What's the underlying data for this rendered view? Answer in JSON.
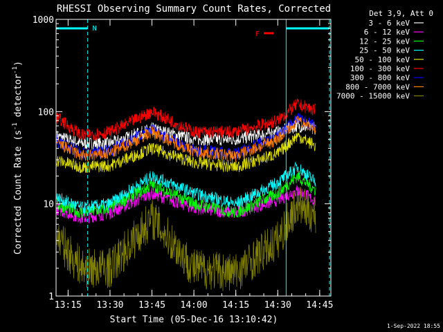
{
  "chart_data": {
    "type": "line",
    "title": "RHESSI Observing Summary Count Rates, Corrected",
    "xlabel": "Start Time (05-Dec-16 13:10:42)",
    "ylabel": "Corrected Count Rate (s⁻¹ detector⁻¹)",
    "ylabel_main": "Corrected Count Rate (s",
    "ylabel_sup1": "-1",
    "ylabel_mid": " detector",
    "ylabel_sup2": "-1",
    "ylabel_end": ")",
    "y_scale": "log",
    "ylim": [
      1,
      1000
    ],
    "xlim": [
      "13:10:42",
      "14:49:00"
    ],
    "x_ticks": [
      "13:15",
      "13:30",
      "13:45",
      "14:00",
      "14:15",
      "14:30",
      "14:45"
    ],
    "y_ticks": [
      "1",
      "10",
      "100",
      "1000"
    ],
    "legend_header": "Det 3,9, Att 0",
    "legend_placement": "right",
    "footer": "1-Sep-2022 18:55",
    "series": [
      {
        "name": "3 - 6 keV",
        "color": "#ffffff",
        "times": [
          "13:10",
          "13:20",
          "13:30",
          "13:45",
          "14:00",
          "14:15",
          "14:30",
          "14:37",
          "14:45"
        ],
        "values": [
          55,
          45,
          45,
          65,
          50,
          50,
          60,
          70,
          65
        ]
      },
      {
        "name": "6 - 12 keV",
        "color": "#ff00ff",
        "times": [
          "13:10",
          "13:20",
          "13:30",
          "13:45",
          "14:00",
          "14:15",
          "14:30",
          "14:37",
          "14:45"
        ],
        "values": [
          9,
          7,
          8,
          13,
          9,
          8,
          11,
          14,
          10
        ]
      },
      {
        "name": "12 - 25 keV",
        "color": "#00ff00",
        "times": [
          "13:10",
          "13:20",
          "13:30",
          "13:45",
          "14:00",
          "14:15",
          "14:30",
          "14:37",
          "14:45"
        ],
        "values": [
          10,
          8,
          9,
          16,
          10,
          8,
          13,
          20,
          13
        ]
      },
      {
        "name": "25 - 50 keV",
        "color": "#00ffff",
        "times": [
          "13:10",
          "13:20",
          "13:30",
          "13:45",
          "14:00",
          "14:15",
          "14:30",
          "14:37",
          "14:45"
        ],
        "values": [
          12,
          9,
          10,
          20,
          13,
          10,
          17,
          25,
          16
        ]
      },
      {
        "name": "50 - 100 keV",
        "color": "#e0e000",
        "times": [
          "13:10",
          "13:20",
          "13:30",
          "13:45",
          "14:00",
          "14:15",
          "14:30",
          "14:37",
          "14:45"
        ],
        "values": [
          30,
          25,
          26,
          40,
          28,
          25,
          35,
          55,
          40
        ]
      },
      {
        "name": "100 - 300 keV",
        "color": "#ff0000",
        "times": [
          "13:10",
          "13:20",
          "13:30",
          "13:45",
          "14:00",
          "14:15",
          "14:30",
          "14:37",
          "14:45"
        ],
        "values": [
          90,
          55,
          60,
          100,
          60,
          60,
          80,
          120,
          100
        ]
      },
      {
        "name": "300 - 800 keV",
        "color": "#0000ff",
        "times": [
          "13:10",
          "13:20",
          "13:30",
          "13:45",
          "14:00",
          "14:15",
          "14:30",
          "14:37",
          "14:45"
        ],
        "values": [
          50,
          35,
          38,
          65,
          38,
          35,
          55,
          85,
          65
        ]
      },
      {
        "name": "800 - 7000 keV",
        "color": "#ff8000",
        "times": [
          "13:10",
          "13:20",
          "13:30",
          "13:45",
          "14:00",
          "14:15",
          "14:30",
          "14:37",
          "14:45"
        ],
        "values": [
          47,
          33,
          35,
          60,
          37,
          33,
          50,
          78,
          62
        ]
      },
      {
        "name": "7000 - 15000 keV",
        "color": "#808000",
        "times": [
          "13:10",
          "13:15",
          "13:20",
          "13:30",
          "13:45",
          "14:00",
          "14:15",
          "14:30",
          "14:37",
          "14:45"
        ],
        "values": [
          5,
          3,
          2,
          2,
          7,
          2,
          1.8,
          4,
          10,
          7
        ]
      }
    ],
    "annotations": [
      {
        "label": "N",
        "type": "night",
        "start": "13:10:42",
        "end": "13:22:00",
        "color": "#00ffff"
      },
      {
        "label": "F",
        "type": "flare",
        "start": "14:25:00",
        "end": "14:27:00",
        "color": "#ff0000"
      },
      {
        "label": "",
        "type": "night",
        "start": "14:33:00",
        "end": "14:48:30",
        "color": "#00ffff"
      }
    ]
  }
}
